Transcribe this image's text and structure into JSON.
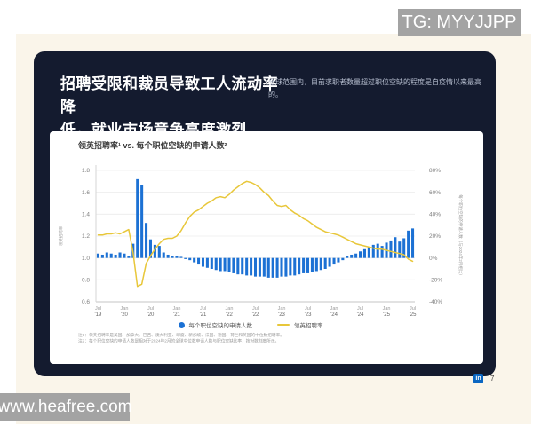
{
  "watermark_top": "TG: MYYJJPP",
  "watermark_bottom": "www.heafree.com",
  "slide": {
    "title_lines": [
      "招聘受限和裁员导致工人流动率降",
      "低，就业市场竞争高度激烈"
    ],
    "subtitle": "全球范围内，目前求职者数量超过职位空缺的程度是自疫情以来最高的。",
    "page_number": "7",
    "linkedin_badge": "in"
  },
  "chart_card": {
    "title": "领英招聘率¹ vs. 每个职位空缺的申请人数²",
    "footnotes": [
      "注1：领英招聘率是美国、加拿大、巴西、澳大利亚、印度、新加坡、法国、德国、荷兰和英国的中位数招聘率。",
      "注2：每个职位空缺的申请人数是相对于2024年2月的全球中位数申请人数与职位空缺比率，按对数刻度所示。"
    ]
  },
  "chart_data": {
    "type": "bar+line",
    "title": "领英招聘率¹ vs. 每个职位空缺的申请人数²",
    "grid": true,
    "legend_position": "bottom",
    "left_axis": {
      "label": "领英招聘率",
      "min": 0.6,
      "max": 1.8,
      "ticks": [
        1.8,
        1.6,
        1.4,
        1.2,
        1.0,
        0.8,
        0.6
      ]
    },
    "right_axis": {
      "label": "每个职位空缺的申请人数（与2024年2月相比）",
      "min": -40,
      "max": 80,
      "unit": "%",
      "ticks": [
        80,
        60,
        40,
        20,
        0,
        -20,
        -40
      ]
    },
    "x_ticks": [
      {
        "index": 0,
        "top": "Jul",
        "bottom": "'19"
      },
      {
        "index": 6,
        "top": "Jan",
        "bottom": "'20"
      },
      {
        "index": 12,
        "top": "Jul",
        "bottom": "'20"
      },
      {
        "index": 18,
        "top": "Jan",
        "bottom": "'21"
      },
      {
        "index": 24,
        "top": "Jul",
        "bottom": "'21"
      },
      {
        "index": 30,
        "top": "Jan",
        "bottom": "'22"
      },
      {
        "index": 36,
        "top": "Jul",
        "bottom": "'22"
      },
      {
        "index": 42,
        "top": "Jan",
        "bottom": "'23"
      },
      {
        "index": 48,
        "top": "Jul",
        "bottom": "'23"
      },
      {
        "index": 54,
        "top": "Jan",
        "bottom": "'24"
      },
      {
        "index": 60,
        "top": "Jul",
        "bottom": "'24"
      },
      {
        "index": 66,
        "top": "Jan",
        "bottom": "'25"
      },
      {
        "index": 72,
        "top": "Jul",
        "bottom": "'25"
      }
    ],
    "series": [
      {
        "name": "每个职位空缺的申请人数",
        "type": "bar",
        "axis": "right",
        "color": "#1c71d4",
        "values": [
          4,
          3,
          5,
          4,
          3,
          5,
          4,
          2,
          13,
          72,
          67,
          32,
          17,
          12,
          11,
          5,
          3,
          2,
          2,
          1,
          -1,
          -2,
          -4,
          -6,
          -8,
          -9,
          -10,
          -11,
          -12,
          -12,
          -13,
          -14,
          -15,
          -15,
          -16,
          -16,
          -17,
          -17,
          -17,
          -18,
          -18,
          -18,
          -17,
          -17,
          -16,
          -16,
          -15,
          -14,
          -14,
          -13,
          -12,
          -11,
          -10,
          -8,
          -6,
          -4,
          -2,
          2,
          3,
          4,
          6,
          8,
          10,
          12,
          13,
          11,
          14,
          16,
          19,
          15,
          18,
          25,
          27
        ]
      },
      {
        "name": "领英招聘率",
        "type": "line",
        "axis": "left",
        "color": "#e8c73a",
        "values": [
          1.21,
          1.21,
          1.22,
          1.22,
          1.23,
          1.22,
          1.24,
          1.26,
          1.05,
          0.74,
          0.76,
          0.95,
          1.02,
          1.08,
          1.13,
          1.17,
          1.18,
          1.18,
          1.2,
          1.25,
          1.32,
          1.38,
          1.42,
          1.44,
          1.47,
          1.5,
          1.52,
          1.55,
          1.56,
          1.55,
          1.58,
          1.62,
          1.65,
          1.68,
          1.7,
          1.69,
          1.67,
          1.64,
          1.6,
          1.57,
          1.52,
          1.48,
          1.47,
          1.48,
          1.44,
          1.41,
          1.39,
          1.36,
          1.34,
          1.31,
          1.28,
          1.26,
          1.24,
          1.23,
          1.22,
          1.21,
          1.19,
          1.17,
          1.15,
          1.13,
          1.12,
          1.11,
          1.1,
          1.09,
          1.08,
          1.08,
          1.07,
          1.06,
          1.05,
          1.04,
          1.03,
          0.99,
          0.97
        ]
      }
    ]
  }
}
